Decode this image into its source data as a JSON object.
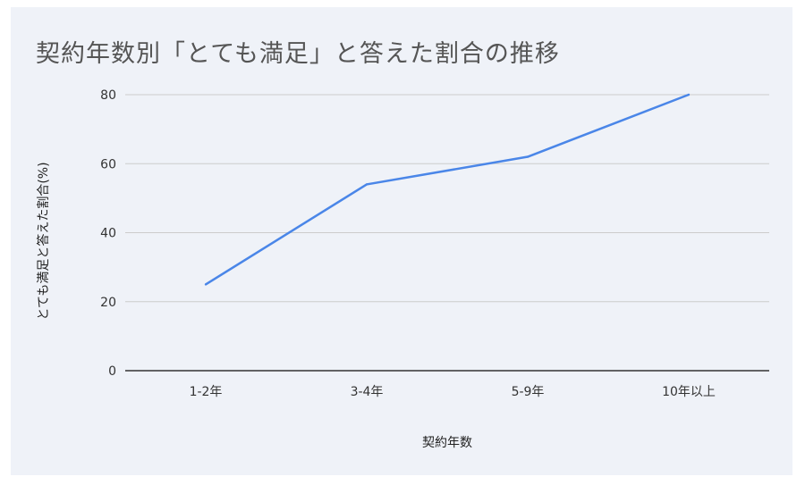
{
  "chart_data": {
    "type": "line",
    "title": "契約年数別「とても満足」と答えた割合の推移",
    "xlabel": "契約年数",
    "ylabel": "とても満足と答えた割合(%)",
    "categories": [
      "1-2年",
      "3-4年",
      "5-9年",
      "10年以上"
    ],
    "series": [
      {
        "values": [
          25,
          54,
          62,
          80
        ]
      }
    ],
    "ylim": [
      0,
      80
    ],
    "yticks": [
      "0",
      "20",
      "40",
      "60",
      "80"
    ],
    "grid": true,
    "legend": "none",
    "colors": {
      "line": "#4a86e8",
      "grid": "#cccccc",
      "background": "#eff2f8"
    }
  }
}
